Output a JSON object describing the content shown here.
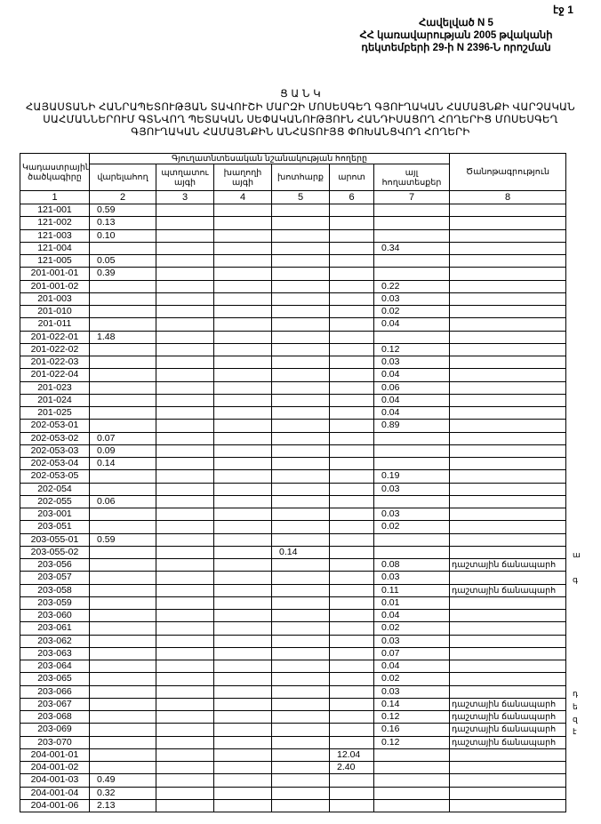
{
  "page_label": "էջ 1",
  "header": {
    "line1": "Հավելված N 5",
    "line2": "ՀՀ կառավարության 2005 թվականի",
    "line3": "դեկտեմբերի 29-ի N 2396-Ն որոշման"
  },
  "title": {
    "word": "Ց Ա Ն Կ",
    "line1": "ՀԱՅԱՍՏԱՆԻ ՀԱՆՐԱՊԵՏՈՒԹՅԱՆ ՏԱՎՈՒՇԻ ՄԱՐԶԻ ՄՈՍԵՍԳԵՂ ԳՅՈՒՂԱԿԱՆ ՀԱՄԱՅՆՔԻ ՎԱՐՉԱԿԱՆ",
    "line2": "ՍԱՀՄԱՆՆԵՐՈՒՄ ԳՏՆՎՈՂ ՊԵՏԱԿԱՆ ՍԵՓԱԿԱՆՈՒԹՅՈՒՆ ՀԱՆԴԻՍԱՑՈՂ ՀՈՂԵՐԻՑ ՄՈՍԵՍԳԵՂ",
    "line3": "ԳՅՈՒՂԱԿԱՆ ՀԱՄԱՅՆՔԻՆ ԱՆՀԱՏՈՒՅՑ ՓՈԽԱՆՑՎՈՂ ՀՈՂԵՐԻ"
  },
  "table": {
    "col_code": "Կադաստրային ծածկագիրը",
    "group_header": "Գյուղատնտեսական նշանակության հողերը",
    "col_arable": "վարելահող",
    "col_orchard": "պտղատու այգի",
    "col_vineyard": "խաղողի այգի",
    "col_hayfield": "խոտհարք",
    "col_pasture": "արոտ",
    "col_other": "այլ հողատեսքեր",
    "col_note": "Ծանոթագրություն",
    "col_numbers": [
      "1",
      "2",
      "3",
      "4",
      "5",
      "6",
      "7",
      "8"
    ],
    "rows": [
      [
        "121-001",
        "0.59",
        "",
        "",
        "",
        "",
        "",
        "",
        ""
      ],
      [
        "121-002",
        "0.13",
        "",
        "",
        "",
        "",
        "",
        "",
        ""
      ],
      [
        "121-003",
        "0.10",
        "",
        "",
        "",
        "",
        "",
        "",
        ""
      ],
      [
        "121-004",
        "",
        "",
        "",
        "",
        "",
        "0.34",
        "",
        ""
      ],
      [
        "121-005",
        "0.05",
        "",
        "",
        "",
        "",
        "",
        "",
        ""
      ],
      [
        "201-001-01",
        "0.39",
        "",
        "",
        "",
        "",
        "",
        "",
        ""
      ],
      [
        "201-001-02",
        "",
        "",
        "",
        "",
        "",
        "0.22",
        "",
        ""
      ],
      [
        "201-003",
        "",
        "",
        "",
        "",
        "",
        "0.03",
        "",
        ""
      ],
      [
        "201-010",
        "",
        "",
        "",
        "",
        "",
        "0.02",
        "",
        ""
      ],
      [
        "201-011",
        "",
        "",
        "",
        "",
        "",
        "0.04",
        "",
        ""
      ],
      [
        "201-022-01",
        "1.48",
        "",
        "",
        "",
        "",
        "",
        "",
        ""
      ],
      [
        "201-022-02",
        "",
        "",
        "",
        "",
        "",
        "0.12",
        "",
        ""
      ],
      [
        "201-022-03",
        "",
        "",
        "",
        "",
        "",
        "0.03",
        "",
        ""
      ],
      [
        "201-022-04",
        "",
        "",
        "",
        "",
        "",
        "0.04",
        "",
        ""
      ],
      [
        "201-023",
        "",
        "",
        "",
        "",
        "",
        "0.06",
        "",
        ""
      ],
      [
        "201-024",
        "",
        "",
        "",
        "",
        "",
        "0.04",
        "",
        ""
      ],
      [
        "201-025",
        "",
        "",
        "",
        "",
        "",
        "0.04",
        "",
        ""
      ],
      [
        "202-053-01",
        "",
        "",
        "",
        "",
        "",
        "0.89",
        "",
        ""
      ],
      [
        "202-053-02",
        "0.07",
        "",
        "",
        "",
        "",
        "",
        "",
        ""
      ],
      [
        "202-053-03",
        "0.09",
        "",
        "",
        "",
        "",
        "",
        "",
        ""
      ],
      [
        "202-053-04",
        "0.14",
        "",
        "",
        "",
        "",
        "",
        "",
        ""
      ],
      [
        "202-053-05",
        "",
        "",
        "",
        "",
        "",
        "0.19",
        "",
        ""
      ],
      [
        "202-054",
        "",
        "",
        "",
        "",
        "",
        "0.03",
        "",
        ""
      ],
      [
        "202-055",
        "0.06",
        "",
        "",
        "",
        "",
        "",
        "",
        ""
      ],
      [
        "203-001",
        "",
        "",
        "",
        "",
        "",
        "0.03",
        "",
        ""
      ],
      [
        "203-051",
        "",
        "",
        "",
        "",
        "",
        "0.02",
        "",
        ""
      ],
      [
        "203-055-01",
        "0.59",
        "",
        "",
        "",
        "",
        "",
        "",
        ""
      ],
      [
        "203-055-02",
        "",
        "",
        "",
        "0.14",
        "",
        "",
        "",
        ""
      ],
      [
        "203-056",
        "",
        "",
        "",
        "",
        "",
        "0.08",
        "դաշտային ճանապարհ",
        "ա"
      ],
      [
        "203-057",
        "",
        "",
        "",
        "",
        "",
        "0.03",
        "",
        ""
      ],
      [
        "203-058",
        "",
        "",
        "",
        "",
        "",
        "0.11",
        "դաշտային ճանապարհ",
        "գ"
      ],
      [
        "203-059",
        "",
        "",
        "",
        "",
        "",
        "0.01",
        "",
        ""
      ],
      [
        "203-060",
        "",
        "",
        "",
        "",
        "",
        "0.04",
        "",
        ""
      ],
      [
        "203-061",
        "",
        "",
        "",
        "",
        "",
        "0.02",
        "",
        ""
      ],
      [
        "203-062",
        "",
        "",
        "",
        "",
        "",
        "0.03",
        "",
        ""
      ],
      [
        "203-063",
        "",
        "",
        "",
        "",
        "",
        "0.07",
        "",
        ""
      ],
      [
        "203-064",
        "",
        "",
        "",
        "",
        "",
        "0.04",
        "",
        ""
      ],
      [
        "203-065",
        "",
        "",
        "",
        "",
        "",
        "0.02",
        "",
        ""
      ],
      [
        "203-066",
        "",
        "",
        "",
        "",
        "",
        "0.03",
        "",
        ""
      ],
      [
        "203-067",
        "",
        "",
        "",
        "",
        "",
        "0.14",
        "դաշտային ճանապարհ",
        "դ"
      ],
      [
        "203-068",
        "",
        "",
        "",
        "",
        "",
        "0.12",
        "դաշտային ճանապարհ",
        "ե"
      ],
      [
        "203-069",
        "",
        "",
        "",
        "",
        "",
        "0.16",
        "դաշտային ճանապարհ",
        "զ"
      ],
      [
        "203-070",
        "",
        "",
        "",
        "",
        "",
        "0.12",
        "դաշտային ճանապարհ",
        "է"
      ],
      [
        "204-001-01",
        "",
        "",
        "",
        "",
        "12.04",
        "",
        "",
        ""
      ],
      [
        "204-001-02",
        "",
        "",
        "",
        "",
        "2.40",
        "",
        "",
        ""
      ],
      [
        "204-001-03",
        "0.49",
        "",
        "",
        "",
        "",
        "",
        "",
        ""
      ],
      [
        "204-001-04",
        "0.32",
        "",
        "",
        "",
        "",
        "",
        "",
        ""
      ],
      [
        "204-001-06",
        "2.13",
        "",
        "",
        "",
        "",
        "",
        "",
        ""
      ]
    ]
  }
}
